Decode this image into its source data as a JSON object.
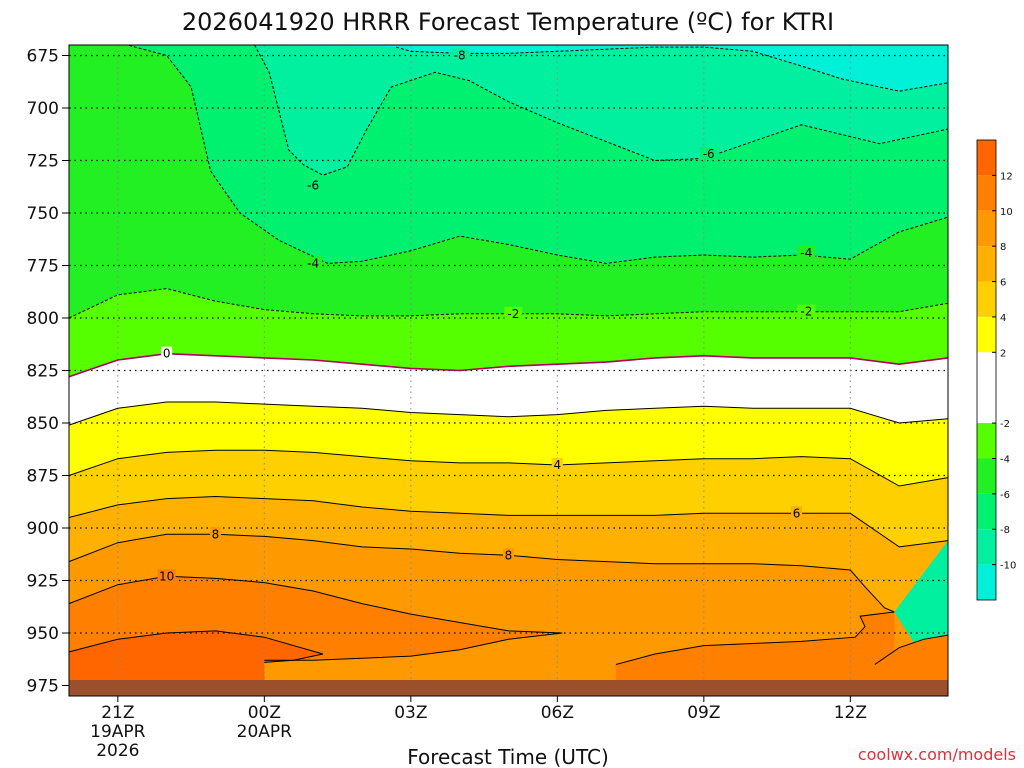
{
  "chart_data": {
    "type": "contour",
    "title": "2026041920 HRRR Forecast Temperature (ºC) for KTRI",
    "xlabel": "Forecast Time (UTC)",
    "ylabel": "",
    "credit": "coolwx.com/models",
    "y_axis": {
      "ticks": [
        675,
        700,
        725,
        750,
        775,
        800,
        825,
        850,
        875,
        900,
        925,
        950,
        975
      ],
      "range": [
        670,
        980
      ],
      "inverted": true
    },
    "x_axis": {
      "ticks": [
        {
          "hour": 21,
          "label": "21Z",
          "date_label": "19APR",
          "year_label": "2026"
        },
        {
          "hour": 24,
          "label": "00Z",
          "date_label": "20APR"
        },
        {
          "hour": 27,
          "label": "03Z"
        },
        {
          "hour": 30,
          "label": "06Z"
        },
        {
          "hour": 33,
          "label": "09Z"
        },
        {
          "hour": 36,
          "label": "12Z"
        }
      ],
      "range": [
        20,
        38
      ]
    },
    "grid": true,
    "legend": "right",
    "colorbar": {
      "labels": [
        "12",
        "10",
        "8",
        "6",
        "4",
        "2",
        "-2",
        "-4",
        "-6",
        "-8",
        "-10"
      ],
      "bands": [
        {
          "from": 12,
          "to": 14,
          "color": "#ff6600"
        },
        {
          "from": 10,
          "to": 12,
          "color": "#ff8000"
        },
        {
          "from": 8,
          "to": 10,
          "color": "#ff9900"
        },
        {
          "from": 6,
          "to": 8,
          "color": "#ffb000"
        },
        {
          "from": 4,
          "to": 6,
          "color": "#ffd000"
        },
        {
          "from": 2,
          "to": 4,
          "color": "#ffff00"
        },
        {
          "from": -2,
          "to": 2,
          "color": "#ffffff"
        },
        {
          "from": -4,
          "to": -2,
          "color": "#55ff00"
        },
        {
          "from": -6,
          "to": -4,
          "color": "#22f022"
        },
        {
          "from": -8,
          "to": -6,
          "color": "#00f070"
        },
        {
          "from": -10,
          "to": -8,
          "color": "#00f0a0"
        },
        {
          "from": -12,
          "to": -10,
          "color": "#00f0d8"
        }
      ]
    },
    "surface_color": "#9b4f2a",
    "contours": [
      {
        "value": -8,
        "label": "-8",
        "dashed": true,
        "color": "#000000",
        "points": [
          [
            26.7,
            671
          ],
          [
            27,
            673
          ],
          [
            28,
            674
          ],
          [
            29,
            674
          ],
          [
            30,
            673
          ],
          [
            31,
            672
          ],
          [
            32,
            671
          ],
          [
            33,
            671
          ],
          [
            34,
            673
          ],
          [
            35,
            680
          ],
          [
            35.8,
            686
          ],
          [
            37,
            692
          ],
          [
            38,
            688
          ]
        ]
      },
      {
        "value": -6,
        "label": "-6",
        "dashed": true,
        "color": "#000000",
        "points": [
          [
            23.8,
            670
          ],
          [
            24.1,
            683
          ],
          [
            24.5,
            720
          ],
          [
            24.8,
            727
          ],
          [
            25.2,
            732
          ],
          [
            25.7,
            728
          ],
          [
            26.1,
            710
          ],
          [
            26.6,
            690
          ],
          [
            27.5,
            683
          ],
          [
            28.2,
            687
          ],
          [
            29,
            697
          ],
          [
            30,
            707
          ],
          [
            31,
            716
          ],
          [
            32,
            725
          ],
          [
            33,
            724
          ],
          [
            34,
            716
          ],
          [
            35,
            708
          ],
          [
            36.6,
            717
          ],
          [
            38,
            710
          ]
        ]
      },
      {
        "value": -4,
        "label": "-4",
        "dashed": true,
        "color": "#000000",
        "points": [
          [
            20,
            670
          ],
          [
            21.2,
            670
          ],
          [
            22,
            675
          ],
          [
            22.5,
            690
          ],
          [
            22.9,
            730
          ],
          [
            23.5,
            750
          ],
          [
            24.3,
            763
          ],
          [
            25.3,
            774
          ],
          [
            26,
            773
          ],
          [
            27,
            768
          ],
          [
            28,
            761
          ],
          [
            29,
            765
          ],
          [
            30,
            770
          ],
          [
            31,
            774
          ],
          [
            32,
            771
          ],
          [
            33,
            770
          ],
          [
            34,
            771
          ],
          [
            35,
            770
          ],
          [
            36,
            772
          ],
          [
            37,
            759
          ],
          [
            38,
            752
          ]
        ]
      },
      {
        "value": -2,
        "label": "-2",
        "dashed": true,
        "color": "#000000",
        "points": [
          [
            20,
            800
          ],
          [
            21,
            789
          ],
          [
            22,
            786
          ],
          [
            23,
            792
          ],
          [
            24,
            796
          ],
          [
            25,
            798
          ],
          [
            26,
            799
          ],
          [
            27,
            799
          ],
          [
            28,
            798
          ],
          [
            29,
            798
          ],
          [
            30,
            798
          ],
          [
            31,
            799
          ],
          [
            32,
            798
          ],
          [
            33,
            797
          ],
          [
            34,
            797
          ],
          [
            35,
            797
          ],
          [
            36,
            797
          ],
          [
            37,
            797
          ],
          [
            38,
            793
          ]
        ]
      },
      {
        "value": 0,
        "label": "0",
        "dashed": false,
        "color": "#b0005a",
        "points": [
          [
            20,
            828
          ],
          [
            21,
            820
          ],
          [
            22,
            817
          ],
          [
            23,
            818
          ],
          [
            24,
            819
          ],
          [
            25,
            820
          ],
          [
            26,
            822
          ],
          [
            27,
            824
          ],
          [
            28,
            825
          ],
          [
            29,
            823
          ],
          [
            30,
            822
          ],
          [
            31,
            821
          ],
          [
            32,
            819
          ],
          [
            33,
            818
          ],
          [
            34,
            819
          ],
          [
            35,
            819
          ],
          [
            36,
            819
          ],
          [
            37,
            822
          ],
          [
            38,
            819
          ]
        ]
      },
      {
        "value": 2,
        "label": "2",
        "dashed": false,
        "color": "#000000",
        "points": [
          [
            20,
            851
          ],
          [
            21,
            843
          ],
          [
            22,
            840
          ],
          [
            23,
            840
          ],
          [
            24,
            841
          ],
          [
            25,
            842
          ],
          [
            26,
            843
          ],
          [
            27,
            845
          ],
          [
            28,
            846
          ],
          [
            29,
            847
          ],
          [
            30,
            846
          ],
          [
            31,
            844
          ],
          [
            32,
            843
          ],
          [
            33,
            842
          ],
          [
            34,
            843
          ],
          [
            35,
            843
          ],
          [
            36,
            843
          ],
          [
            37,
            850
          ],
          [
            38,
            848
          ]
        ]
      },
      {
        "value": 4,
        "label": "4",
        "dashed": false,
        "color": "#000000",
        "points": [
          [
            20,
            875
          ],
          [
            21,
            867
          ],
          [
            22,
            864
          ],
          [
            23,
            863
          ],
          [
            24,
            863
          ],
          [
            25,
            864
          ],
          [
            26,
            866
          ],
          [
            27,
            868
          ],
          [
            28,
            869
          ],
          [
            29,
            869
          ],
          [
            30,
            870
          ],
          [
            31,
            869
          ],
          [
            32,
            868
          ],
          [
            33,
            867
          ],
          [
            34,
            867
          ],
          [
            35,
            866
          ],
          [
            36,
            867
          ],
          [
            37,
            880
          ],
          [
            38,
            876
          ]
        ]
      },
      {
        "value": 6,
        "label": "6",
        "dashed": false,
        "color": "#000000",
        "points": [
          [
            20,
            895
          ],
          [
            21,
            889
          ],
          [
            22,
            886
          ],
          [
            23,
            885
          ],
          [
            24,
            886
          ],
          [
            25,
            887
          ],
          [
            26,
            890
          ],
          [
            27,
            892
          ],
          [
            28,
            893
          ],
          [
            29,
            894
          ],
          [
            30,
            894
          ],
          [
            31,
            894
          ],
          [
            32,
            894
          ],
          [
            33,
            893
          ],
          [
            34,
            893
          ],
          [
            35,
            893
          ],
          [
            36,
            893
          ],
          [
            37,
            909
          ],
          [
            38,
            906
          ]
        ]
      },
      {
        "value": 8,
        "label": "8",
        "dashed": false,
        "color": "#000000",
        "points": [
          [
            20,
            916
          ],
          [
            21,
            907
          ],
          [
            22,
            903
          ],
          [
            23,
            903
          ],
          [
            24,
            904
          ],
          [
            25,
            906
          ],
          [
            26,
            909
          ],
          [
            27,
            910
          ],
          [
            28,
            912
          ],
          [
            29,
            913
          ],
          [
            30,
            915
          ],
          [
            31,
            916
          ],
          [
            32,
            917
          ],
          [
            33,
            917
          ],
          [
            34,
            917
          ],
          [
            35,
            918
          ],
          [
            36,
            920
          ],
          [
            36.3,
            928
          ],
          [
            36.7,
            938
          ],
          [
            36.9,
            940
          ]
        ]
      },
      {
        "value": 10,
        "label": "10",
        "dashed": false,
        "color": "#000000",
        "points": [
          [
            20,
            936
          ],
          [
            21,
            927
          ],
          [
            22,
            923
          ],
          [
            23,
            924
          ],
          [
            24,
            926
          ],
          [
            25,
            930
          ],
          [
            26,
            936
          ],
          [
            27,
            941
          ],
          [
            28,
            945
          ],
          [
            29,
            949
          ],
          [
            30.1,
            950
          ],
          [
            29,
            953
          ],
          [
            28,
            958
          ],
          [
            27,
            961
          ],
          [
            26,
            962
          ],
          [
            25,
            963
          ],
          [
            24,
            963
          ]
        ]
      },
      {
        "value": 10,
        "label": "",
        "dashed": false,
        "color": "#000000",
        "points": [
          [
            31.2,
            965
          ],
          [
            32,
            960
          ],
          [
            33,
            956
          ],
          [
            34,
            955
          ],
          [
            35,
            954
          ],
          [
            36.1,
            952
          ],
          [
            36.3,
            947
          ],
          [
            36.2,
            942
          ],
          [
            36.9,
            940
          ]
        ]
      },
      {
        "value": 12,
        "label": "",
        "dashed": false,
        "color": "#000000",
        "points": [
          [
            20,
            959
          ],
          [
            21,
            953
          ],
          [
            22,
            950
          ],
          [
            23,
            949
          ],
          [
            24,
            952
          ],
          [
            25.2,
            960
          ],
          [
            24.6,
            963
          ],
          [
            24,
            964
          ]
        ]
      },
      {
        "value": 10,
        "label": "",
        "dashed": false,
        "color": "#000000",
        "points": [
          [
            36.5,
            965
          ],
          [
            37,
            957
          ],
          [
            37.5,
            953
          ],
          [
            38,
            951
          ]
        ]
      }
    ],
    "contour_labels": [
      {
        "text": "-8",
        "x": 28.0,
        "y": 675
      },
      {
        "text": "-6",
        "x": 25.0,
        "y": 737
      },
      {
        "text": "-6",
        "x": 33.1,
        "y": 722
      },
      {
        "text": "-4",
        "x": 25.0,
        "y": 774
      },
      {
        "text": "-4",
        "x": 35.1,
        "y": 769
      },
      {
        "text": "-2",
        "x": 29.1,
        "y": 798
      },
      {
        "text": "-2",
        "x": 35.1,
        "y": 797
      },
      {
        "text": "0",
        "x": 22.0,
        "y": 817
      },
      {
        "text": "4",
        "x": 30.0,
        "y": 870
      },
      {
        "text": "6",
        "x": 34.9,
        "y": 893
      },
      {
        "text": "8",
        "x": 23.0,
        "y": 903
      },
      {
        "text": "8",
        "x": 29.0,
        "y": 913
      },
      {
        "text": "10",
        "x": 22.0,
        "y": 923
      }
    ]
  }
}
